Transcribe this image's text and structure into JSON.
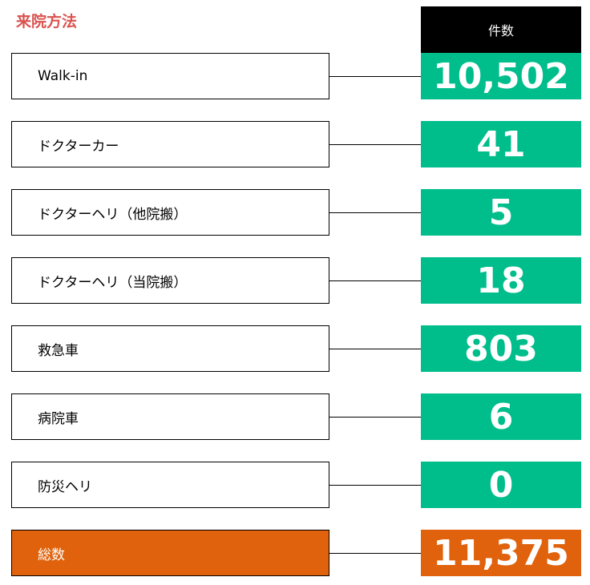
{
  "title": "来院方法",
  "column_header": "件数",
  "rows": [
    {
      "label": "Walk-in",
      "value": "10,502"
    },
    {
      "label": "ドクターカー",
      "value": "41"
    },
    {
      "label": "ドクターヘリ（他院搬）",
      "value": "5"
    },
    {
      "label": "ドクターヘリ（当院搬）",
      "value": "18"
    },
    {
      "label": "救急車",
      "value": "803"
    },
    {
      "label": "病院車",
      "value": "6"
    },
    {
      "label": "防災ヘリ",
      "value": "0"
    }
  ],
  "total": {
    "label": "総数",
    "value": "11,375"
  },
  "colors": {
    "value_green": "#00bd8c",
    "total_orange": "#e0620c",
    "header_black": "#000000",
    "title_red": "#d9534f"
  }
}
